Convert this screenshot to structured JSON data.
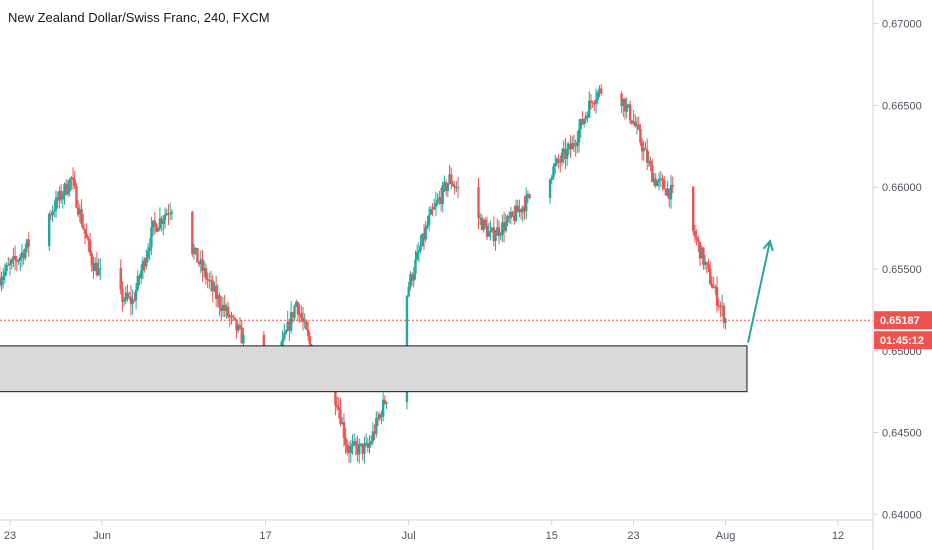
{
  "title": "New Zealand Dollar/Swiss Franc, 240, FXCM",
  "colors": {
    "up": "#26a69a",
    "down": "#ef5350",
    "price_line": "#ef5350",
    "zone_fill": "#d9d9d9",
    "zone_stroke": "#131722",
    "arrow": "#26a69a",
    "axis_border": "#d1d4dc",
    "axis_text": "#50535e"
  },
  "chart_data": {
    "type": "candlestick",
    "y_axis": {
      "range": [
        0.6399,
        0.6712
      ],
      "ticks": [
        0.64,
        0.645,
        0.65,
        0.655,
        0.66,
        0.665,
        0.67
      ],
      "tick_labels": [
        "0.64000",
        "0.64500",
        "0.65000",
        "0.65500",
        "0.66000",
        "0.66500",
        "0.67000"
      ]
    },
    "x_axis": {
      "tick_labels": [
        "23",
        "Jun",
        "17",
        "Jul",
        "15",
        "23",
        "Aug",
        "12"
      ],
      "tick_positions_date": [
        "2019-05-23",
        "2019-06-01",
        "2019-06-17",
        "2019-07-01",
        "2019-07-15",
        "2019-07-23",
        "2019-08-01",
        "2019-08-12"
      ]
    },
    "current_price": {
      "value": 0.65187,
      "label": "0.65187"
    },
    "countdown": {
      "label": "01:45:12"
    },
    "demand_zone": {
      "low": 0.6475,
      "high": 0.6503
    },
    "projection_arrow": {
      "from_price": 0.6505,
      "to_price": 0.6567
    },
    "price_path": [
      [
        "2019-05-22",
        0.6545
      ],
      [
        "2019-05-24",
        0.6558
      ],
      [
        "2019-05-27",
        0.6585
      ],
      [
        "2019-05-29",
        0.6605
      ],
      [
        "2019-05-31",
        0.6555
      ],
      [
        "2019-06-02",
        0.6535
      ],
      [
        "2019-06-04",
        0.653
      ],
      [
        "2019-06-06",
        0.6575
      ],
      [
        "2019-06-08",
        0.659
      ],
      [
        "2019-06-10",
        0.656
      ],
      [
        "2019-06-12",
        0.6535
      ],
      [
        "2019-06-14",
        0.6515
      ],
      [
        "2019-06-16",
        0.6495
      ],
      [
        "2019-06-18",
        0.649
      ],
      [
        "2019-06-20",
        0.653
      ],
      [
        "2019-06-22",
        0.649
      ],
      [
        "2019-06-24",
        0.647
      ],
      [
        "2019-06-25",
        0.644
      ],
      [
        "2019-06-27",
        0.644
      ],
      [
        "2019-06-29",
        0.6475
      ],
      [
        "2019-07-01",
        0.654
      ],
      [
        "2019-07-03",
        0.658
      ],
      [
        "2019-07-05",
        0.6605
      ],
      [
        "2019-07-07",
        0.659
      ],
      [
        "2019-07-09",
        0.657
      ],
      [
        "2019-07-11",
        0.658
      ],
      [
        "2019-07-13",
        0.6595
      ],
      [
        "2019-07-15",
        0.661
      ],
      [
        "2019-07-17",
        0.6625
      ],
      [
        "2019-07-19",
        0.6655
      ],
      [
        "2019-07-21",
        0.6665
      ],
      [
        "2019-07-23",
        0.664
      ],
      [
        "2019-07-25",
        0.6605
      ],
      [
        "2019-07-27",
        0.6595
      ],
      [
        "2019-07-29",
        0.657
      ],
      [
        "2019-07-31",
        0.6535
      ],
      [
        "2019-08-01",
        0.6519
      ]
    ]
  }
}
